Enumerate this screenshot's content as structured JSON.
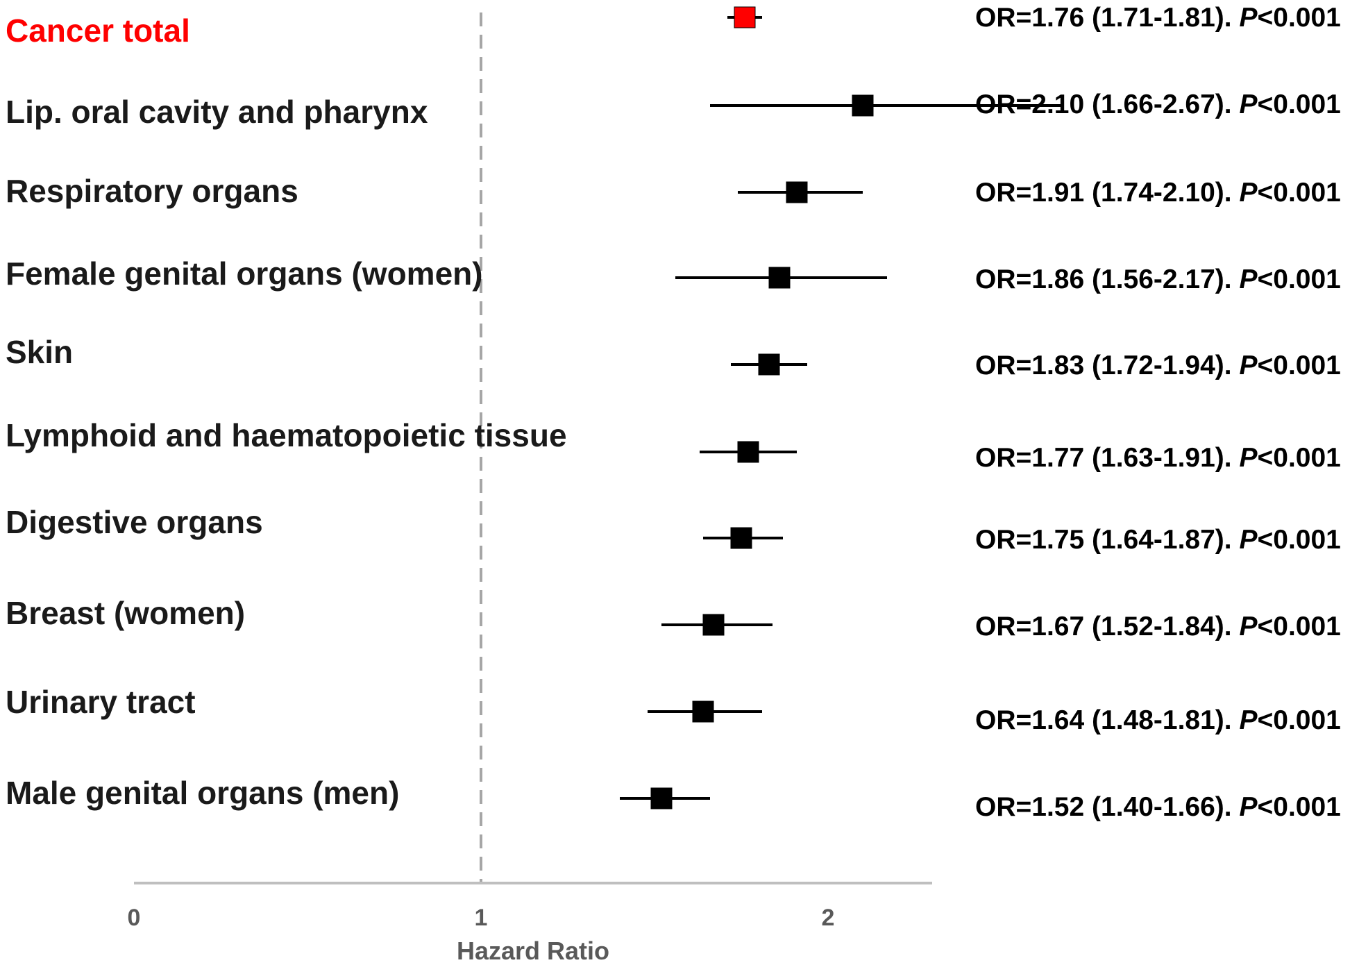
{
  "chart_data": {
    "type": "forest",
    "xlabel": "Hazard Ratio",
    "xlim": [
      0,
      2.3
    ],
    "xticks": [
      0,
      1,
      2
    ],
    "reference_line": 1,
    "grid": false,
    "rows": [
      {
        "label": "Cancer total",
        "estimate": 1.76,
        "lower": 1.71,
        "upper": 1.81,
        "stat_text": "OR=1.76 (1.71-1.81). ",
        "p_symbol": "P",
        "p_text": "<0.001",
        "color": "#ff0000",
        "highlight": true
      },
      {
        "label": "Lip. oral cavity and pharynx",
        "estimate": 2.1,
        "lower": 1.66,
        "upper": 2.67,
        "stat_text": "OR=2.10 (1.66-2.67). ",
        "p_symbol": "P",
        "p_text": "<0.001",
        "color": "#000000"
      },
      {
        "label": "Respiratory organs",
        "estimate": 1.91,
        "lower": 1.74,
        "upper": 2.1,
        "stat_text": "OR=1.91 (1.74-2.10). ",
        "p_symbol": "P",
        "p_text": "<0.001",
        "color": "#000000"
      },
      {
        "label": "Female genital organs (women)",
        "estimate": 1.86,
        "lower": 1.56,
        "upper": 2.17,
        "stat_text": "OR=1.86 (1.56-2.17). ",
        "p_symbol": "P",
        "p_text": "<0.001",
        "color": "#000000"
      },
      {
        "label": "Skin",
        "estimate": 1.83,
        "lower": 1.72,
        "upper": 1.94,
        "stat_text": "OR=1.83 (1.72-1.94). ",
        "p_symbol": "P",
        "p_text": "<0.001",
        "color": "#000000"
      },
      {
        "label": "Lymphoid and haematopoietic tissue",
        "estimate": 1.77,
        "lower": 1.63,
        "upper": 1.91,
        "stat_text": "OR=1.77 (1.63-1.91). ",
        "p_symbol": "P",
        "p_text": "<0.001",
        "color": "#000000"
      },
      {
        "label": "Digestive organs",
        "estimate": 1.75,
        "lower": 1.64,
        "upper": 1.87,
        "stat_text": "OR=1.75 (1.64-1.87). ",
        "p_symbol": "P",
        "p_text": "<0.001",
        "color": "#000000"
      },
      {
        "label": "Breast (women)",
        "estimate": 1.67,
        "lower": 1.52,
        "upper": 1.84,
        "stat_text": "OR=1.67 (1.52-1.84). ",
        "p_symbol": "P",
        "p_text": "<0.001",
        "color": "#000000"
      },
      {
        "label": "Urinary tract",
        "estimate": 1.64,
        "lower": 1.48,
        "upper": 1.81,
        "stat_text": "OR=1.64 (1.48-1.81). ",
        "p_symbol": "P",
        "p_text": "<0.001",
        "color": "#000000"
      },
      {
        "label": "Male genital organs (men)",
        "estimate": 1.52,
        "lower": 1.4,
        "upper": 1.66,
        "stat_text": "OR=1.52 (1.40-1.66). ",
        "p_symbol": "P",
        "p_text": "<0.001",
        "color": "#000000"
      }
    ]
  }
}
